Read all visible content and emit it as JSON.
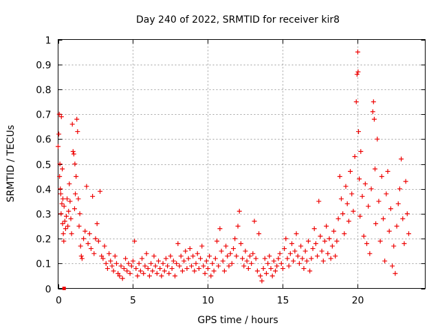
{
  "chart_data": {
    "type": "scatter",
    "title": "Day 240 of 2022, SRMTID for receiver kir8",
    "xlabel": "GPS time / hours",
    "ylabel": "SRMTID / TECUs",
    "xlim": [
      0,
      24.5
    ],
    "ylim": [
      0,
      1
    ],
    "xticks": [
      0,
      5,
      10,
      15,
      20
    ],
    "xtick_labels": [
      "0",
      "5",
      "10",
      "15",
      "20"
    ],
    "yticks": [
      0,
      0.1,
      0.2,
      0.3,
      0.4,
      0.5,
      0.6,
      0.7,
      0.8,
      0.9,
      1
    ],
    "ytick_labels": [
      "0",
      "0.1",
      "0.2",
      "0.3",
      "0.4",
      "0.5",
      "0.6",
      "0.7",
      "0.8",
      "0.9",
      "1"
    ],
    "grid": true,
    "marker": "plus",
    "color": "#ee0000",
    "series": [
      {
        "name": "SRMTID",
        "points": [
          [
            0.0,
            0.57
          ],
          [
            0.05,
            0.62
          ],
          [
            0.08,
            0.7
          ],
          [
            0.1,
            0.45
          ],
          [
            0.12,
            0.5
          ],
          [
            0.15,
            0.4
          ],
          [
            0.18,
            0.38
          ],
          [
            0.2,
            0.3
          ],
          [
            0.22,
            0.69
          ],
          [
            0.25,
            0.34
          ],
          [
            0.28,
            0.48
          ],
          [
            0.3,
            0.26
          ],
          [
            0.32,
            0.36
          ],
          [
            0.35,
            0.22
          ],
          [
            0.38,
            0.19
          ],
          [
            0.4,
            0.33
          ],
          [
            0.45,
            0.27
          ],
          [
            0.5,
            0.24
          ],
          [
            0.55,
            0.29
          ],
          [
            0.6,
            0.36
          ],
          [
            0.65,
            0.25
          ],
          [
            0.7,
            0.31
          ],
          [
            0.75,
            0.42
          ],
          [
            0.8,
            0.35
          ],
          [
            0.85,
            0.28
          ],
          [
            0.9,
            0.22
          ],
          [
            0.95,
            0.66
          ],
          [
            1.0,
            0.55
          ],
          [
            1.05,
            0.54
          ],
          [
            1.1,
            0.32
          ],
          [
            1.12,
            0.5
          ],
          [
            1.15,
            0.38
          ],
          [
            1.2,
            0.45
          ],
          [
            1.25,
            0.68
          ],
          [
            1.3,
            0.63
          ],
          [
            1.35,
            0.36
          ],
          [
            1.4,
            0.25
          ],
          [
            1.45,
            0.3
          ],
          [
            1.5,
            0.17
          ],
          [
            1.55,
            0.13
          ],
          [
            1.6,
            0.12
          ],
          [
            1.7,
            0.2
          ],
          [
            1.8,
            0.23
          ],
          [
            1.9,
            0.41
          ],
          [
            2.0,
            0.18
          ],
          [
            2.1,
            0.22
          ],
          [
            2.2,
            0.16
          ],
          [
            2.3,
            0.37
          ],
          [
            2.4,
            0.14
          ],
          [
            2.5,
            0.2
          ],
          [
            2.6,
            0.26
          ],
          [
            2.7,
            0.19
          ],
          [
            2.8,
            0.39
          ],
          [
            2.9,
            0.13
          ],
          [
            3.0,
            0.12
          ],
          [
            3.1,
            0.17
          ],
          [
            3.2,
            0.1
          ],
          [
            3.3,
            0.08
          ],
          [
            3.4,
            0.14
          ],
          [
            3.5,
            0.11
          ],
          [
            3.6,
            0.09
          ],
          [
            3.7,
            0.07
          ],
          [
            3.8,
            0.13
          ],
          [
            3.9,
            0.1
          ],
          [
            4.0,
            0.06
          ],
          [
            4.1,
            0.05
          ],
          [
            4.2,
            0.09
          ],
          [
            4.3,
            0.04
          ],
          [
            4.4,
            0.08
          ],
          [
            4.5,
            0.12
          ],
          [
            4.6,
            0.07
          ],
          [
            4.7,
            0.1
          ],
          [
            4.8,
            0.06
          ],
          [
            4.9,
            0.09
          ],
          [
            5.0,
            0.11
          ],
          [
            5.1,
            0.19
          ],
          [
            5.2,
            0.08
          ],
          [
            5.3,
            0.05
          ],
          [
            5.4,
            0.1
          ],
          [
            5.5,
            0.07
          ],
          [
            5.6,
            0.12
          ],
          [
            5.7,
            0.06
          ],
          [
            5.8,
            0.09
          ],
          [
            5.9,
            0.14
          ],
          [
            6.0,
            0.08
          ],
          [
            6.1,
            0.05
          ],
          [
            6.2,
            0.1
          ],
          [
            6.3,
            0.07
          ],
          [
            6.4,
            0.13
          ],
          [
            6.5,
            0.09
          ],
          [
            6.6,
            0.06
          ],
          [
            6.7,
            0.11
          ],
          [
            6.8,
            0.08
          ],
          [
            6.9,
            0.05
          ],
          [
            7.0,
            0.1
          ],
          [
            7.1,
            0.07
          ],
          [
            7.2,
            0.12
          ],
          [
            7.3,
            0.09
          ],
          [
            7.4,
            0.06
          ],
          [
            7.5,
            0.13
          ],
          [
            7.6,
            0.08
          ],
          [
            7.7,
            0.11
          ],
          [
            7.8,
            0.05
          ],
          [
            7.9,
            0.1
          ],
          [
            8.0,
            0.18
          ],
          [
            8.1,
            0.09
          ],
          [
            8.2,
            0.13
          ],
          [
            8.3,
            0.07
          ],
          [
            8.4,
            0.11
          ],
          [
            8.5,
            0.15
          ],
          [
            8.6,
            0.08
          ],
          [
            8.7,
            0.12
          ],
          [
            8.8,
            0.16
          ],
          [
            8.9,
            0.09
          ],
          [
            9.0,
            0.13
          ],
          [
            9.1,
            0.07
          ],
          [
            9.2,
            0.1
          ],
          [
            9.3,
            0.14
          ],
          [
            9.4,
            0.08
          ],
          [
            9.5,
            0.12
          ],
          [
            9.6,
            0.17
          ],
          [
            9.7,
            0.09
          ],
          [
            9.8,
            0.06
          ],
          [
            9.9,
            0.11
          ],
          [
            10.0,
            0.08
          ],
          [
            10.1,
            0.13
          ],
          [
            10.2,
            0.05
          ],
          [
            10.3,
            0.1
          ],
          [
            10.4,
            0.07
          ],
          [
            10.5,
            0.12
          ],
          [
            10.6,
            0.19
          ],
          [
            10.7,
            0.09
          ],
          [
            10.8,
            0.24
          ],
          [
            10.9,
            0.15
          ],
          [
            11.0,
            0.11
          ],
          [
            11.1,
            0.07
          ],
          [
            11.2,
            0.17
          ],
          [
            11.3,
            0.13
          ],
          [
            11.4,
            0.09
          ],
          [
            11.5,
            0.14
          ],
          [
            11.6,
            0.1
          ],
          [
            11.7,
            0.16
          ],
          [
            11.8,
            0.2
          ],
          [
            11.9,
            0.13
          ],
          [
            12.0,
            0.25
          ],
          [
            12.1,
            0.31
          ],
          [
            12.2,
            0.18
          ],
          [
            12.3,
            0.12
          ],
          [
            12.4,
            0.09
          ],
          [
            12.5,
            0.15
          ],
          [
            12.6,
            0.11
          ],
          [
            12.7,
            0.08
          ],
          [
            12.8,
            0.13
          ],
          [
            12.9,
            0.1
          ],
          [
            13.0,
            0.14
          ],
          [
            13.1,
            0.27
          ],
          [
            13.2,
            0.12
          ],
          [
            13.3,
            0.07
          ],
          [
            13.4,
            0.22
          ],
          [
            13.5,
            0.05
          ],
          [
            13.6,
            0.03
          ],
          [
            13.7,
            0.08
          ],
          [
            13.8,
            0.12
          ],
          [
            13.9,
            0.06
          ],
          [
            14.0,
            0.1
          ],
          [
            14.1,
            0.13
          ],
          [
            14.2,
            0.08
          ],
          [
            14.3,
            0.05
          ],
          [
            14.4,
            0.11
          ],
          [
            14.5,
            0.07
          ],
          [
            14.6,
            0.09
          ],
          [
            14.7,
            0.12
          ],
          [
            14.8,
            0.14
          ],
          [
            14.9,
            0.1
          ],
          [
            15.0,
            0.08
          ],
          [
            15.1,
            0.16
          ],
          [
            15.2,
            0.2
          ],
          [
            15.3,
            0.12
          ],
          [
            15.4,
            0.09
          ],
          [
            15.5,
            0.14
          ],
          [
            15.6,
            0.18
          ],
          [
            15.7,
            0.11
          ],
          [
            15.8,
            0.15
          ],
          [
            15.9,
            0.22
          ],
          [
            16.0,
            0.13
          ],
          [
            16.1,
            0.1
          ],
          [
            16.2,
            0.17
          ],
          [
            16.3,
            0.12
          ],
          [
            16.4,
            0.08
          ],
          [
            16.5,
            0.15
          ],
          [
            16.6,
            0.11
          ],
          [
            16.7,
            0.19
          ],
          [
            16.8,
            0.07
          ],
          [
            16.9,
            0.12
          ],
          [
            17.0,
            0.16
          ],
          [
            17.1,
            0.24
          ],
          [
            17.2,
            0.18
          ],
          [
            17.3,
            0.13
          ],
          [
            17.4,
            0.35
          ],
          [
            17.5,
            0.21
          ],
          [
            17.6,
            0.15
          ],
          [
            17.7,
            0.11
          ],
          [
            17.8,
            0.19
          ],
          [
            17.9,
            0.25
          ],
          [
            18.0,
            0.14
          ],
          [
            18.1,
            0.2
          ],
          [
            18.2,
            0.12
          ],
          [
            18.3,
            0.17
          ],
          [
            18.4,
            0.23
          ],
          [
            18.5,
            0.13
          ],
          [
            18.6,
            0.19
          ],
          [
            18.7,
            0.28
          ],
          [
            18.8,
            0.45
          ],
          [
            18.9,
            0.36
          ],
          [
            19.0,
            0.3
          ],
          [
            19.1,
            0.22
          ],
          [
            19.2,
            0.41
          ],
          [
            19.3,
            0.34
          ],
          [
            19.4,
            0.27
          ],
          [
            19.5,
            0.47
          ],
          [
            19.6,
            0.38
          ],
          [
            19.7,
            0.31
          ],
          [
            19.8,
            0.53
          ],
          [
            19.9,
            0.75
          ],
          [
            19.95,
            0.86
          ],
          [
            20.0,
            0.95
          ],
          [
            20.02,
            0.87
          ],
          [
            20.05,
            0.63
          ],
          [
            20.1,
            0.44
          ],
          [
            20.15,
            0.29
          ],
          [
            20.2,
            0.55
          ],
          [
            20.3,
            0.37
          ],
          [
            20.4,
            0.21
          ],
          [
            20.5,
            0.42
          ],
          [
            20.6,
            0.18
          ],
          [
            20.7,
            0.33
          ],
          [
            20.8,
            0.14
          ],
          [
            20.9,
            0.4
          ],
          [
            21.0,
            0.71
          ],
          [
            21.05,
            0.75
          ],
          [
            21.1,
            0.68
          ],
          [
            21.15,
            0.48
          ],
          [
            21.2,
            0.26
          ],
          [
            21.3,
            0.6
          ],
          [
            21.4,
            0.35
          ],
          [
            21.5,
            0.19
          ],
          [
            21.6,
            0.45
          ],
          [
            21.7,
            0.28
          ],
          [
            21.8,
            0.11
          ],
          [
            21.9,
            0.38
          ],
          [
            22.0,
            0.47
          ],
          [
            22.1,
            0.23
          ],
          [
            22.2,
            0.32
          ],
          [
            22.3,
            0.09
          ],
          [
            22.4,
            0.17
          ],
          [
            22.5,
            0.06
          ],
          [
            22.6,
            0.25
          ],
          [
            22.7,
            0.34
          ],
          [
            22.8,
            0.4
          ],
          [
            22.9,
            0.52
          ],
          [
            23.0,
            0.28
          ],
          [
            23.1,
            0.18
          ],
          [
            23.2,
            0.43
          ],
          [
            23.3,
            0.3
          ],
          [
            23.4,
            0.22
          ]
        ]
      }
    ],
    "annotations": [
      {
        "type": "square-marker",
        "x": 0.4,
        "y": 0
      }
    ]
  }
}
